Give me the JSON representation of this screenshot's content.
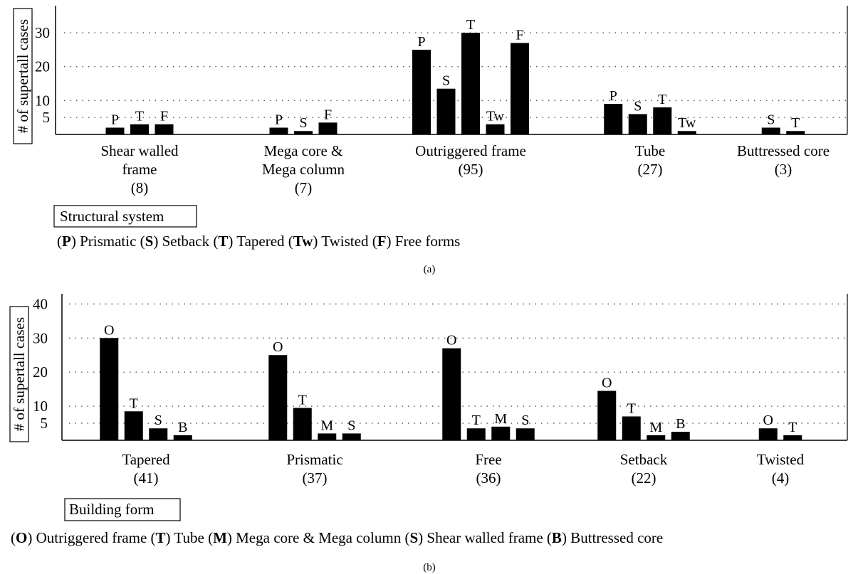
{
  "chart_data": [
    {
      "id": "a",
      "type": "bar",
      "ylabel": "# of supertall cases",
      "ytick_labels": [
        "5",
        "10",
        "20",
        "30"
      ],
      "yticks": [
        5,
        10,
        20,
        30
      ],
      "ylim": [
        0,
        38
      ],
      "grid": true,
      "category_title": "Structural system",
      "groups": [
        {
          "name": "Shear walled frame",
          "name_lines": [
            "Shear walled",
            "frame"
          ],
          "count": "(8)",
          "bars": [
            {
              "key": "P",
              "value": 2
            },
            {
              "key": "T",
              "value": 3
            },
            {
              "key": "F",
              "value": 3
            }
          ]
        },
        {
          "name": "Mega core & Mega column",
          "name_lines": [
            "Mega core &",
            "Mega column"
          ],
          "count": "(7)",
          "bars": [
            {
              "key": "P",
              "value": 2
            },
            {
              "key": "S",
              "value": 1
            },
            {
              "key": "F",
              "value": 3.5
            }
          ]
        },
        {
          "name": "Outriggered frame",
          "name_lines": [
            "Outriggered frame"
          ],
          "count": "(95)",
          "bars": [
            {
              "key": "P",
              "value": 25
            },
            {
              "key": "S",
              "value": 13.5
            },
            {
              "key": "T",
              "value": 30
            },
            {
              "key": "Tw",
              "value": 3
            },
            {
              "key": "F",
              "value": 27
            }
          ]
        },
        {
          "name": "Tube",
          "name_lines": [
            "Tube"
          ],
          "count": "(27)",
          "bars": [
            {
              "key": "P",
              "value": 9
            },
            {
              "key": "S",
              "value": 6
            },
            {
              "key": "T",
              "value": 8
            },
            {
              "key": "Tw",
              "value": 1
            }
          ]
        },
        {
          "name": "Buttressed core",
          "name_lines": [
            "Buttressed core"
          ],
          "count": "(3)",
          "bars": [
            {
              "key": "S",
              "value": 2
            },
            {
              "key": "T",
              "value": 1
            }
          ]
        }
      ],
      "legend": [
        {
          "key": "P",
          "label": "Prismatic"
        },
        {
          "key": "S",
          "label": "Setback"
        },
        {
          "key": "T",
          "label": "Tapered"
        },
        {
          "key": "Tw",
          "label": "Twisted"
        },
        {
          "key": "F",
          "label": "Free forms"
        }
      ],
      "caption": "(a)"
    },
    {
      "id": "b",
      "type": "bar",
      "ylabel": "# of supertall cases",
      "ytick_labels": [
        "5",
        "10",
        "20",
        "30",
        "40"
      ],
      "yticks": [
        5,
        10,
        20,
        30,
        40
      ],
      "ylim": [
        0,
        43
      ],
      "grid": true,
      "category_title": "Building form",
      "groups": [
        {
          "name": "Tapered",
          "name_lines": [
            "Tapered"
          ],
          "count": "(41)",
          "bars": [
            {
              "key": "O",
              "value": 30
            },
            {
              "key": "T",
              "value": 8.5
            },
            {
              "key": "S",
              "value": 3.5
            },
            {
              "key": "B",
              "value": 1.5
            }
          ]
        },
        {
          "name": "Prismatic",
          "name_lines": [
            "Prismatic"
          ],
          "count": "(37)",
          "bars": [
            {
              "key": "O",
              "value": 25
            },
            {
              "key": "T",
              "value": 9.5
            },
            {
              "key": "M",
              "value": 2
            },
            {
              "key": "S",
              "value": 2
            }
          ]
        },
        {
          "name": "Free",
          "name_lines": [
            "Free"
          ],
          "count": "(36)",
          "bars": [
            {
              "key": "O",
              "value": 27
            },
            {
              "key": "T",
              "value": 3.5
            },
            {
              "key": "M",
              "value": 4
            },
            {
              "key": "S",
              "value": 3.5
            }
          ]
        },
        {
          "name": "Setback",
          "name_lines": [
            "Setback"
          ],
          "count": "(22)",
          "bars": [
            {
              "key": "O",
              "value": 14.5
            },
            {
              "key": "T",
              "value": 7
            },
            {
              "key": "M",
              "value": 1.5
            },
            {
              "key": "B",
              "value": 2.5
            }
          ]
        },
        {
          "name": "Twisted",
          "name_lines": [
            "Twisted"
          ],
          "count": "(4)",
          "bars": [
            {
              "key": "O",
              "value": 3.5
            },
            {
              "key": "T",
              "value": 1.5
            }
          ]
        }
      ],
      "legend": [
        {
          "key": "O",
          "label": "Outriggered frame"
        },
        {
          "key": "T",
          "label": "Tube"
        },
        {
          "key": "M",
          "label": "Mega core & Mega column"
        },
        {
          "key": "S",
          "label": "Shear walled frame"
        },
        {
          "key": "B",
          "label": "Buttressed core"
        }
      ],
      "caption": "(b)"
    }
  ]
}
